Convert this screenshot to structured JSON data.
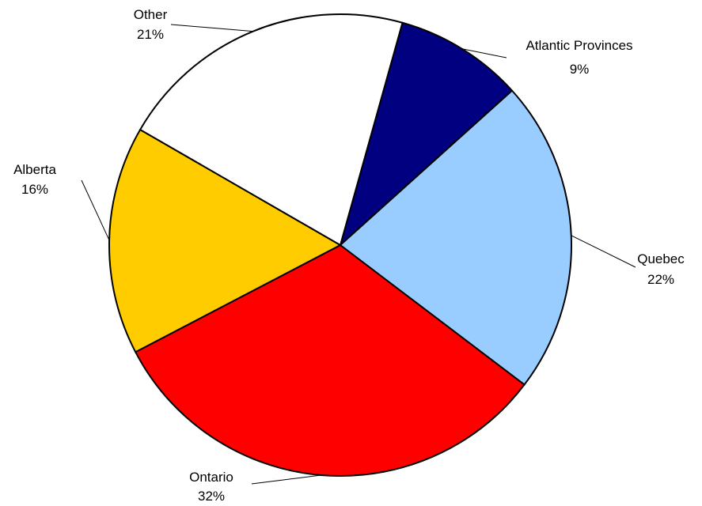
{
  "chart_data": {
    "type": "pie",
    "title": "",
    "start_angle_deg": 15.6,
    "direction": "clockwise",
    "slices": [
      {
        "name": "Atlantic Provinces",
        "value": 9,
        "label": "9%",
        "color": "#000080"
      },
      {
        "name": "Quebec",
        "value": 22,
        "label": "22%",
        "color": "#99ccff"
      },
      {
        "name": "Ontario",
        "value": 32,
        "label": "32%",
        "color": "#ff0000"
      },
      {
        "name": "Alberta",
        "value": 16,
        "label": "16%",
        "color": "#ffcc00"
      },
      {
        "name": "Other",
        "value": 21,
        "label": "21%",
        "color": "#ffffff"
      }
    ]
  }
}
